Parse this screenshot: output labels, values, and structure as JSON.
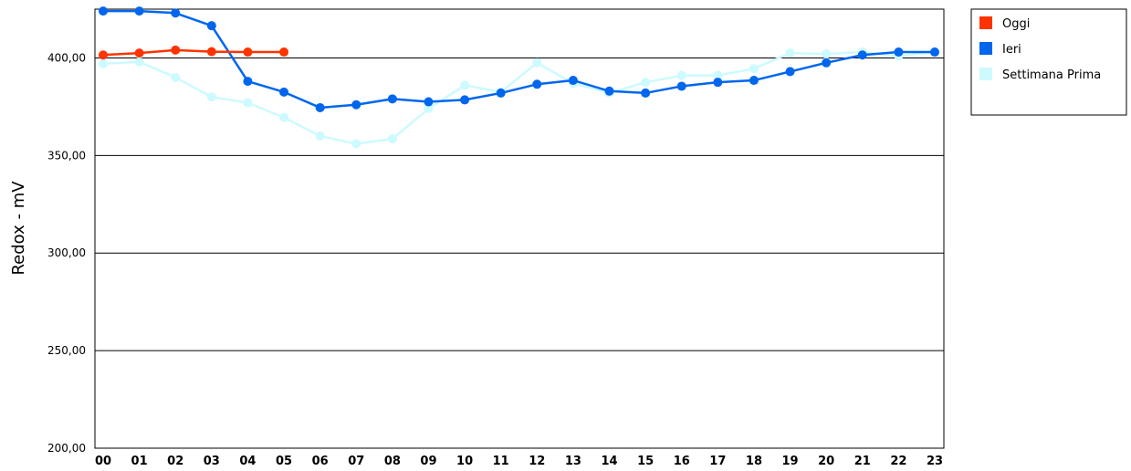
{
  "chart_data": {
    "type": "line",
    "title": "",
    "xlabel": "",
    "ylabel": "Redox - mV",
    "x": [
      "00",
      "01",
      "02",
      "03",
      "04",
      "05",
      "06",
      "07",
      "08",
      "09",
      "10",
      "11",
      "12",
      "13",
      "14",
      "15",
      "16",
      "17",
      "18",
      "19",
      "20",
      "21",
      "22",
      "23"
    ],
    "y_ticks": [
      "200,00",
      "250,00",
      "300,00",
      "350,00",
      "400,00"
    ],
    "ylim": [
      200,
      425
    ],
    "grid": true,
    "legend": "top-right",
    "series": [
      {
        "name": "Oggi",
        "color": "#ff3300",
        "values": [
          401.5,
          402.5,
          404,
          403.2,
          403,
          403,
          null,
          null,
          null,
          null,
          null,
          null,
          null,
          null,
          null,
          null,
          null,
          null,
          null,
          null,
          null,
          null,
          null,
          null
        ]
      },
      {
        "name": "Ieri",
        "color": "#0066ee",
        "values": [
          424,
          424,
          423,
          416.5,
          388,
          382.5,
          374.5,
          376,
          379,
          377.5,
          378.5,
          382,
          386.5,
          388.5,
          383,
          382,
          385.5,
          387.5,
          388.5,
          393,
          397.5,
          401.5,
          403,
          403
        ]
      },
      {
        "name": "Settimana Prima",
        "color": "#ccfaff",
        "values": [
          397,
          398,
          390,
          380,
          377,
          369.5,
          360,
          356,
          358.5,
          374,
          386,
          382.5,
          397.5,
          387,
          382,
          387.5,
          391,
          391,
          394.5,
          402.5,
          402,
          403,
          401,
          403
        ]
      }
    ]
  }
}
